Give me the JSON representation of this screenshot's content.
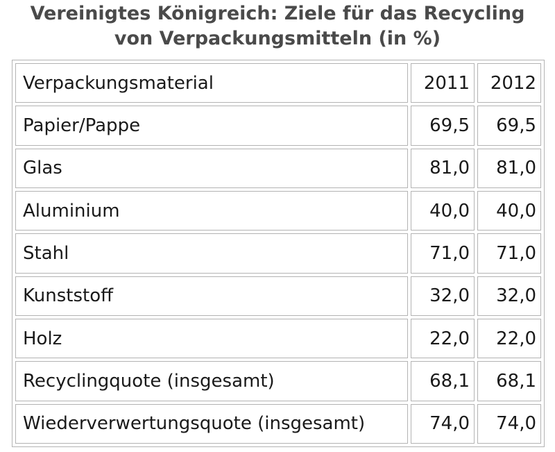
{
  "chart_data": {
    "type": "table",
    "title": "Vereinigtes Königreich: Ziele für das Recycling von Verpackungsmitteln (in %)",
    "title_lines": [
      "Vereinigtes Königreich: Ziele für das Recycling",
      "von Verpackungsmitteln (in %)"
    ],
    "columns": [
      "Verpackungsmaterial",
      "2011",
      "2012"
    ],
    "rows": [
      [
        "Papier/Pappe",
        "69,5",
        "69,5"
      ],
      [
        "Glas",
        "81,0",
        "81,0"
      ],
      [
        "Aluminium",
        "40,0",
        "40,0"
      ],
      [
        "Stahl",
        "71,0",
        "71,0"
      ],
      [
        "Kunststoff",
        "32,0",
        "32,0"
      ],
      [
        "Holz",
        "22,0",
        "22,0"
      ],
      [
        "Recyclingquote (insgesamt)",
        "68,1",
        "68,1"
      ],
      [
        "Wiederverwertungsquote (insgesamt)",
        "74,0",
        "74,0"
      ]
    ]
  }
}
